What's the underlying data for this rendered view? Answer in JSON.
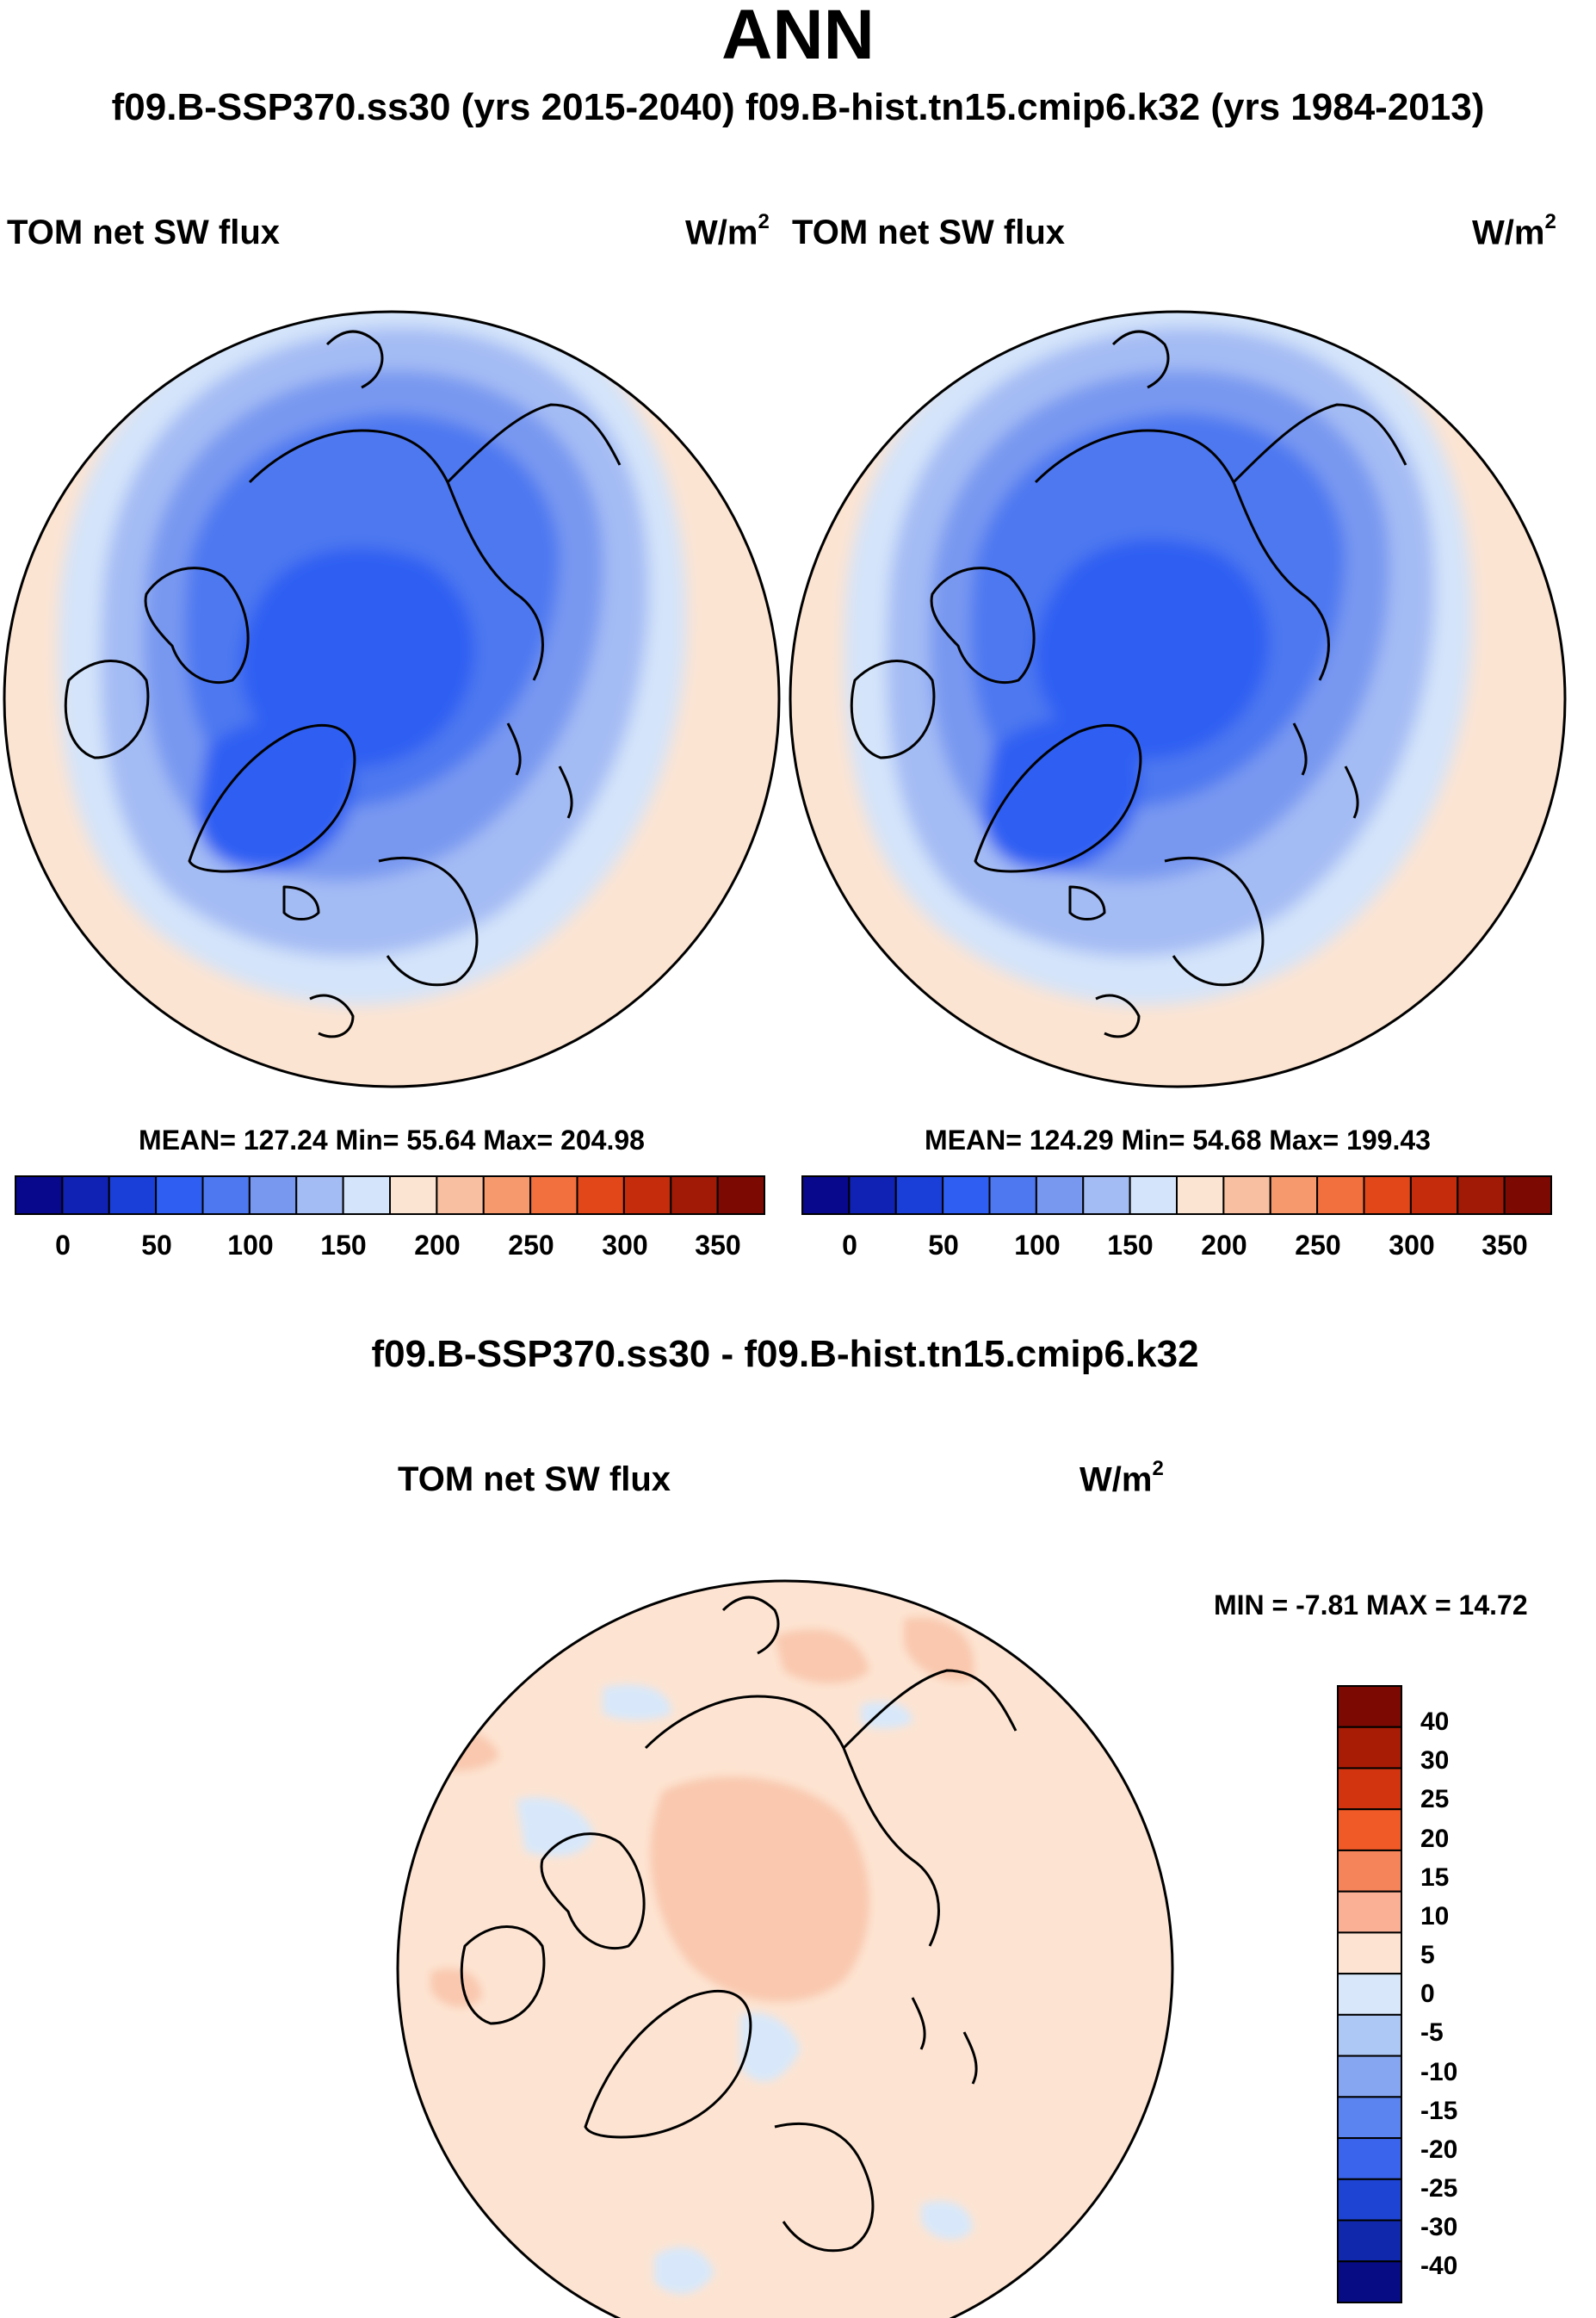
{
  "header": {
    "title": "ANN",
    "subtitle": "f09.B-SSP370.ss30 (yrs 2015-2040)  f09.B-hist.tn15.cmip6.k32 (yrs 1984-2013)"
  },
  "panel_left": {
    "variable": "TOM net SW flux",
    "units_base": "W/m",
    "units_exp": "2",
    "stats": "MEAN= 127.24  Min=  55.64  Max= 204.98"
  },
  "panel_right": {
    "variable": "TOM net SW flux",
    "units_base": "W/m",
    "units_exp": "2",
    "stats": "MEAN= 124.29  Min=  54.68  Max= 199.43"
  },
  "panel_diff": {
    "heading": "f09.B-SSP370.ss30 - f09.B-hist.tn15.cmip6.k32",
    "variable": "TOM net SW flux",
    "units_base": "W/m",
    "units_exp": "2",
    "stats": "MIN =  -7.81 MAX =  14.72"
  },
  "abs_colorbar": {
    "labels": [
      "0",
      "50",
      "100",
      "150",
      "200",
      "250",
      "300",
      "350"
    ],
    "colors": [
      "#08088c",
      "#1022b4",
      "#1a3fd8",
      "#2e5ff2",
      "#4d78f0",
      "#7898f0",
      "#a4bcf4",
      "#d4e4fa",
      "#fce4d2",
      "#f8c0a0",
      "#f69a6e",
      "#f2703e",
      "#e2471a",
      "#c42c0c",
      "#a01a06",
      "#7c0a02"
    ]
  },
  "diff_colorbar": {
    "labels": [
      "40",
      "30",
      "25",
      "20",
      "15",
      "10",
      "5",
      "0",
      "-5",
      "-10",
      "-15",
      "-20",
      "-25",
      "-30",
      "-40"
    ],
    "colors": [
      "#7c0a02",
      "#a81c06",
      "#d23410",
      "#f05a26",
      "#f6845a",
      "#f9b094",
      "#fde4d2",
      "#d8e8fa",
      "#aec8f6",
      "#86a6f2",
      "#5c84f0",
      "#3a64ec",
      "#1e44d4",
      "#1028ac",
      "#080c84"
    ]
  }
}
